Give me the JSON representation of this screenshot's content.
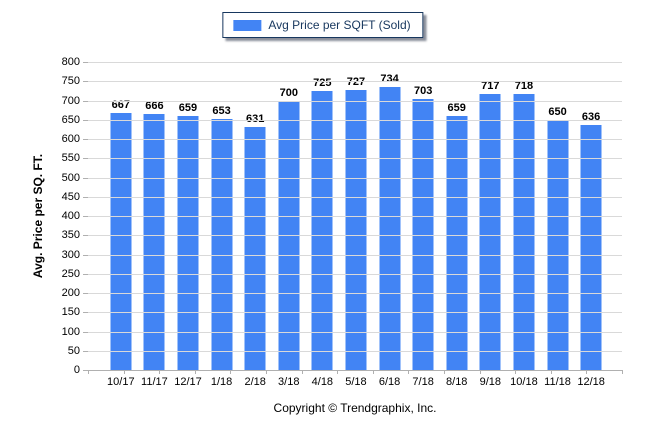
{
  "legend": {
    "label": "Avg Price per SQFT (Sold)"
  },
  "footer": {
    "copyright": "Copyright © Trendgraphix, Inc."
  },
  "colors": {
    "bar": "#4284f4",
    "gridline": "#d9d9d9",
    "axis": "#b0b0b0",
    "legend_border": "#17375e",
    "legend_text": "#17375e",
    "text": "#000000"
  },
  "chart_data": {
    "type": "bar",
    "title": "",
    "series_name": "Avg Price per SQFT (Sold)",
    "categories": [
      "10/17",
      "11/17",
      "12/17",
      "1/18",
      "2/18",
      "3/18",
      "4/18",
      "5/18",
      "6/18",
      "7/18",
      "8/18",
      "9/18",
      "10/18",
      "11/18",
      "12/18"
    ],
    "values": [
      667,
      666,
      659,
      653,
      631,
      700,
      725,
      727,
      734,
      703,
      659,
      717,
      718,
      650,
      636
    ],
    "xlabel": "",
    "ylabel": "Avg. Price per SQ. FT.",
    "ylim": [
      0,
      800
    ],
    "ytick_step": 50,
    "grid": true,
    "value_labels": true,
    "legend_position": "top-center",
    "bar_color": "#4284f4"
  }
}
